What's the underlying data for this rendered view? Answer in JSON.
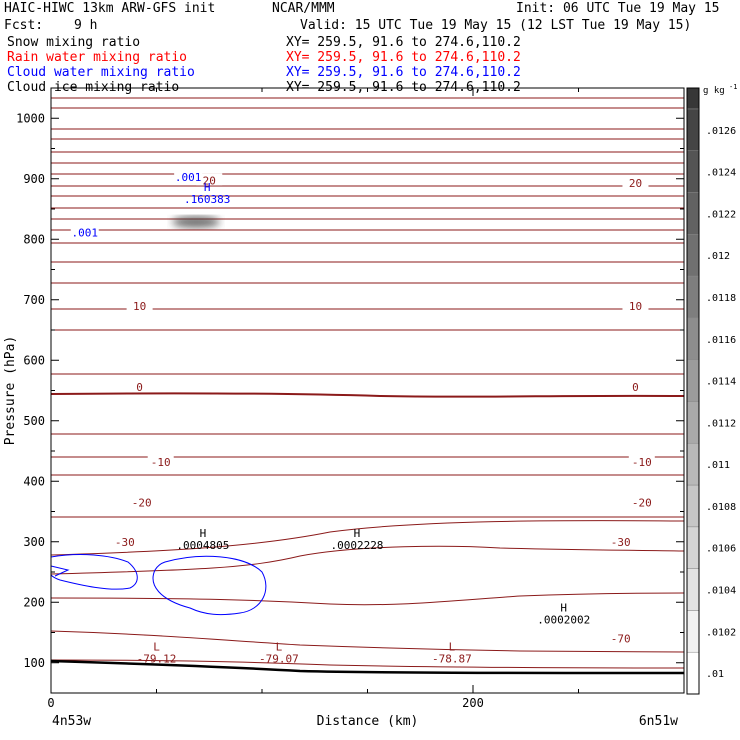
{
  "header": {
    "title_left": "HAIC-HIWC 13km ARW-GFS init",
    "title_org": "NCAR/MMM",
    "init": "Init: 06 UTC Tue 19 May 15",
    "fcst_label": "Fcst:",
    "fcst_value": "9 h",
    "valid": "Valid: 15 UTC Tue 19 May 15 (12 LST Tue 19 May 15)"
  },
  "fields": [
    {
      "name": "Snow mixing ratio",
      "xy": "XY= 259.5, 91.6 to 274.6,110.2",
      "color": "#000000"
    },
    {
      "name": "Rain water mixing ratio",
      "xy": "XY= 259.5, 91.6 to 274.6,110.2",
      "color": "#ff0000"
    },
    {
      "name": "Cloud water mixing ratio",
      "xy": "XY= 259.5, 91.6 to 274.6,110.2",
      "color": "#0000ff"
    },
    {
      "name": "Cloud ice mixing ratio",
      "xy": "XY= 259.5, 91.6 to 274.6,110.2",
      "color": "#000000"
    }
  ],
  "chart_data": {
    "type": "contour",
    "xlabel": "Distance (km)",
    "ylabel": "Pressure (hPa)",
    "xlim": [
      0,
      300
    ],
    "ylim": [
      1050,
      50
    ],
    "x_ticks": [
      "0",
      "200"
    ],
    "x_tick_values": [
      0,
      200
    ],
    "y_ticks": [
      "100",
      "200",
      "300",
      "400",
      "500",
      "600",
      "700",
      "800",
      "900",
      "1000"
    ],
    "y_tick_values": [
      100,
      200,
      300,
      400,
      500,
      600,
      700,
      800,
      900,
      1000
    ],
    "x_endpoints": [
      "4n53w",
      "6n51w"
    ],
    "colorbar": {
      "unit": "g kg",
      "unit_sup": "-1",
      "levels": [
        ".01",
        ".0102",
        ".0104",
        ".0106",
        ".0108",
        ".011",
        ".0112",
        ".0114",
        ".0116",
        ".0118",
        ".012",
        ".0122",
        ".0124",
        ".0126"
      ]
    },
    "temperature_labels": [
      {
        "text": "-70",
        "x": 270,
        "p": 140
      },
      {
        "text": "-30",
        "x": 35,
        "p": 300
      },
      {
        "text": "-30",
        "x": 270,
        "p": 300
      },
      {
        "text": "-20",
        "x": 43,
        "p": 365
      },
      {
        "text": "-20",
        "x": 280,
        "p": 365
      },
      {
        "text": "-10",
        "x": 52,
        "p": 432
      },
      {
        "text": "-10",
        "x": 280,
        "p": 432
      },
      {
        "text": "0",
        "x": 42,
        "p": 556
      },
      {
        "text": "0",
        "x": 277,
        "p": 556
      },
      {
        "text": "10",
        "x": 42,
        "p": 690
      },
      {
        "text": "10",
        "x": 277,
        "p": 690
      },
      {
        "text": "20",
        "x": 75,
        "p": 897
      },
      {
        "text": "20",
        "x": 277,
        "p": 893
      }
    ],
    "extrema": [
      {
        "type": "L",
        "value": "-79.12",
        "x": 50,
        "p": 110,
        "color": "#8b1a1a"
      },
      {
        "type": "L",
        "value": "-79.07",
        "x": 108,
        "p": 110,
        "color": "#8b1a1a"
      },
      {
        "type": "L",
        "value": "-78.87",
        "x": 190,
        "p": 110,
        "color": "#8b1a1a"
      },
      {
        "type": "H",
        "value": ".0002002",
        "x": 243,
        "p": 175,
        "color": "#000000"
      },
      {
        "type": "H",
        "value": ".0004805",
        "x": 72,
        "p": 298,
        "color": "#000000"
      },
      {
        "type": "H",
        "value": ".0002228",
        "x": 145,
        "p": 298,
        "color": "#000000"
      },
      {
        "type": "H",
        "value": ".160383",
        "x": 74,
        "p": 870,
        "color": "#0000ff"
      }
    ],
    "cloud_water_labels": [
      {
        "text": ".001",
        "x": 16,
        "p": 811
      },
      {
        "text": ".001",
        "x": 65,
        "p": 903
      }
    ]
  }
}
